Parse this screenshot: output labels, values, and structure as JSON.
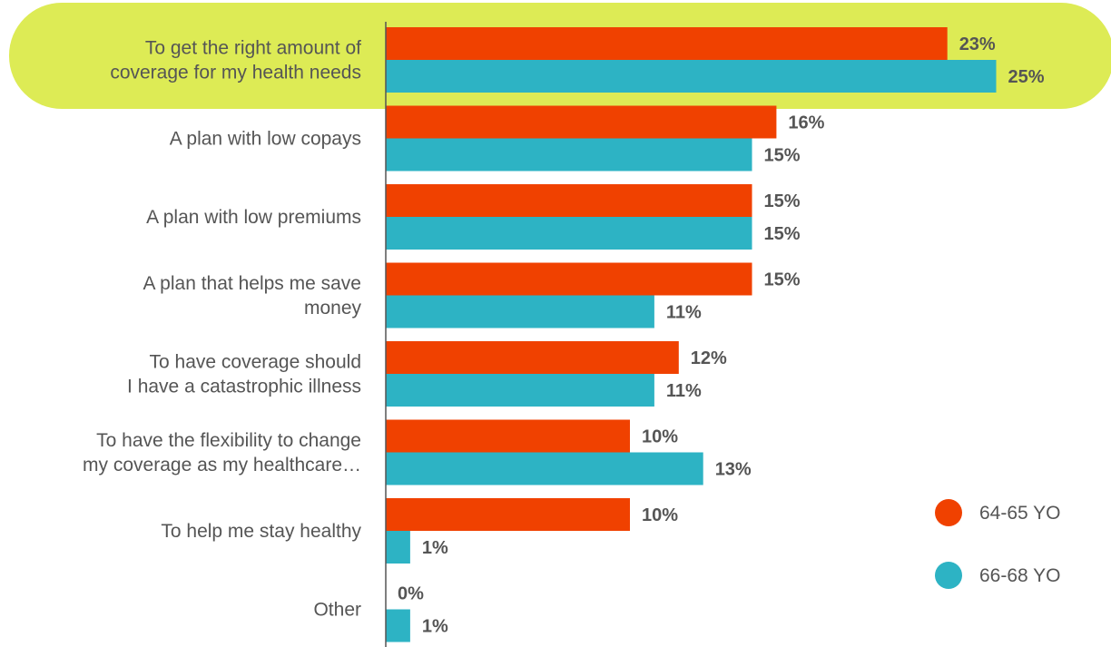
{
  "chart_data": {
    "type": "bar",
    "orientation": "horizontal",
    "categories": [
      [
        "To get the right amount of",
        "coverage for my health needs"
      ],
      [
        "A plan with low copays"
      ],
      [
        "A plan with low premiums"
      ],
      [
        "A plan that helps me save",
        "money"
      ],
      [
        "To have coverage should",
        "I have a catastrophic illness"
      ],
      [
        "To have the flexibility to change",
        "my coverage as my healthcare…"
      ],
      [
        "To help me stay healthy"
      ],
      [
        "Other"
      ]
    ],
    "series": [
      {
        "name": "64-65 YO",
        "color": "#F04100",
        "values": [
          23,
          16,
          15,
          15,
          12,
          10,
          10,
          0
        ]
      },
      {
        "name": "66-68 YO",
        "color": "#2DB3C4",
        "values": [
          25,
          15,
          15,
          11,
          11,
          13,
          1,
          1
        ]
      }
    ],
    "value_suffix": "%",
    "highlight": {
      "category_index": 0,
      "color": "#DDEB55"
    },
    "legend_position": "right",
    "grid": false
  }
}
